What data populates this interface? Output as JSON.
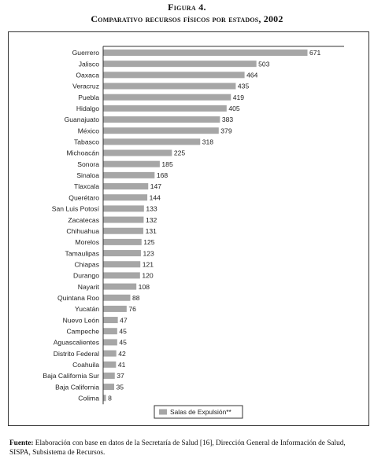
{
  "figure_label": "Figura 4.",
  "figure_title": "Comparativo recursos físicos por estados, 2002",
  "source_label": "Fuente:",
  "source_text": "Elaboración con base en datos de la Secretaría de Salud [16], Dirección General de Información de Salud, SISPA, Subsistema de Recursos.",
  "colors": {
    "bar": "#a6a6a6",
    "axis": "#333333",
    "text": "#222222"
  },
  "chart_data": {
    "type": "bar",
    "orientation": "horizontal",
    "title": "",
    "xlabel": "",
    "ylabel": "",
    "xlim": [
      0,
      700
    ],
    "grid": false,
    "legend": {
      "position": "bottom-center",
      "entries": [
        "Salas de Expulsión**"
      ]
    },
    "categories": [
      "Guerrero",
      "Jalisco",
      "Oaxaca",
      "Veracruz",
      "Puebla",
      "Hidalgo",
      "Guanajuato",
      "México",
      "Tabasco",
      "Michoacán",
      "Sonora",
      "Sinaloa",
      "Tlaxcala",
      "Querétaro",
      "San Luis Potosí",
      "Zacatecas",
      "Chihuahua",
      "Morelos",
      "Tamaulipas",
      "Chiapas",
      "Durango",
      "Nayarit",
      "Quintana Roo",
      "Yucatán",
      "Nuevo León",
      "Campeche",
      "Aguascalientes",
      "Distrito Federal",
      "Coahuila",
      "Baja California Sur",
      "Baja California",
      "Colima"
    ],
    "series": [
      {
        "name": "Salas de Expulsión**",
        "values": [
          671,
          503,
          464,
          435,
          419,
          405,
          383,
          379,
          318,
          225,
          185,
          168,
          147,
          144,
          133,
          132,
          131,
          125,
          123,
          121,
          120,
          108,
          88,
          76,
          47,
          45,
          45,
          42,
          41,
          37,
          35,
          8
        ]
      }
    ]
  }
}
